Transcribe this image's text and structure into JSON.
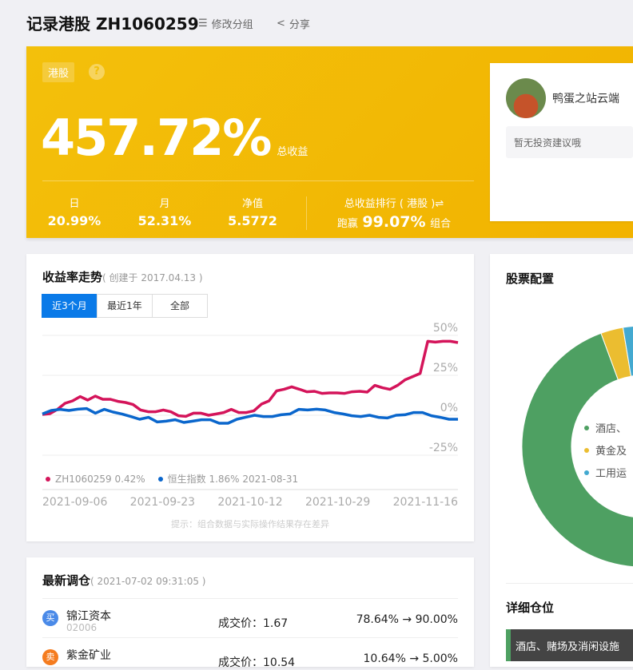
{
  "header": {
    "title": "记录港股 ZH1060259",
    "edit_group": "修改分组",
    "share": "分享"
  },
  "hero": {
    "tag": "港股",
    "help": "?",
    "total_return": "457.72%",
    "total_return_label": "总收益",
    "stats": [
      {
        "label": "日",
        "value": "20.99%"
      },
      {
        "label": "月",
        "value": "52.31%"
      },
      {
        "label": "净值",
        "value": "5.5772"
      }
    ],
    "rank": {
      "label": "总收益排行 ( 港股 )⇌",
      "prefix": "跑赢",
      "value": "99.07%",
      "suffix": "组合"
    }
  },
  "profile": {
    "name": "鸭蛋之站云端",
    "advice": "暂无投资建议哦"
  },
  "trend": {
    "title": "收益率走势",
    "subtitle": "( 创建于 2017.04.13 )",
    "tabs": [
      "近3个月",
      "最近1年",
      "全部"
    ],
    "active_tab": 0,
    "tip": "提示：组合数据与实际操作结果存在差异"
  },
  "chart_data": {
    "type": "line",
    "ylim": [
      -25,
      50
    ],
    "yticks": [
      "50%",
      "25%",
      "0%",
      "-25%"
    ],
    "xticks": [
      "2021-09-06",
      "2021-09-23",
      "2021-10-12",
      "2021-10-29",
      "2021-11-16"
    ],
    "series": [
      {
        "name": "ZH1060259 0.42%",
        "color": "#d4145a",
        "values": [
          0.5,
          1,
          3.7,
          7.5,
          9,
          11.7,
          9.5,
          12,
          10,
          10,
          8.7,
          8,
          6.7,
          3.3,
          2.2,
          2.2,
          3.3,
          2.2,
          -0.3,
          -0.7,
          1.3,
          1.3,
          0,
          0.8,
          1.7,
          3.7,
          1.7,
          1.7,
          2.8,
          7,
          9,
          15.3,
          16.3,
          17.8,
          16.3,
          14.7,
          15,
          13.7,
          14,
          14,
          13.7,
          14.7,
          15,
          14.5,
          18.7,
          17.2,
          16.2,
          18.7,
          22.2,
          24.2,
          26.2,
          46.3,
          45.8,
          46.3,
          46.3,
          45.5
        ]
      },
      {
        "name": "恒生指数 1.86% 2021-08-31",
        "color": "#0a66cc",
        "values": [
          0.8,
          3,
          3.7,
          3,
          3.8,
          4.2,
          1.3,
          3.7,
          2,
          0.8,
          -0.8,
          -2.5,
          -1.3,
          -4.2,
          -3.7,
          -2.8,
          -4.5,
          -3.7,
          -2.8,
          -2.8,
          -5,
          -5,
          -2.5,
          -1.2,
          0,
          -0.8,
          -0.8,
          0.3,
          0.8,
          3.7,
          3.3,
          3.8,
          3.3,
          1.7,
          0.8,
          -0.3,
          -0.8,
          0,
          -1.3,
          -1.7,
          0,
          0.3,
          1.7,
          1.7,
          -0.3,
          -1.3,
          -2.5,
          -2.5
        ]
      }
    ]
  },
  "trades": {
    "title": "最新调仓",
    "subtitle": "( 2021-07-02 09:31:05 )",
    "rows": [
      {
        "action": "买",
        "color": "#4a8ae8",
        "name": "锦江资本",
        "code": "02006",
        "price": "成交价：1.67",
        "change": "78.64% → 90.00%"
      },
      {
        "action": "卖",
        "color": "#f57c1f",
        "name": "紫金矿业",
        "code": "",
        "price": "成交价：10.54",
        "change": "10.64% → 5.00%"
      }
    ]
  },
  "allocation": {
    "title": "股票配置",
    "slices": [
      {
        "label": "酒店、",
        "value": 94.4,
        "color": "#4ea062"
      },
      {
        "label": "黄金及",
        "value": 3.0,
        "color": "#ebbd30"
      },
      {
        "label": "工用运",
        "value": 2.6,
        "color": "#43a9d0"
      }
    ]
  },
  "positions": {
    "title": "详细仓位",
    "first_group": "酒店、赌场及消闲设施"
  }
}
